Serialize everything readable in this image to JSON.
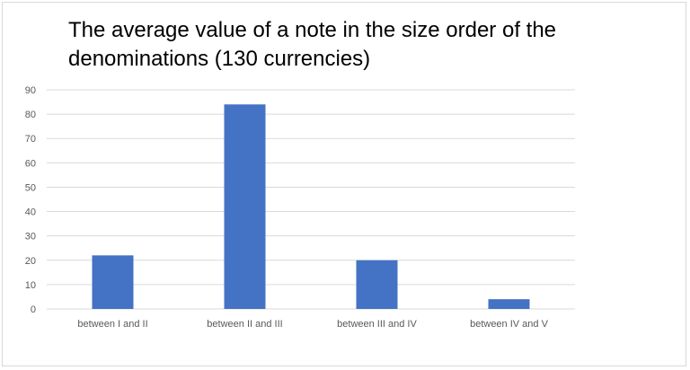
{
  "chart_data": {
    "type": "bar",
    "title": "The average value of a note in the size order of the denominations (130 currencies)",
    "xlabel": "",
    "ylabel": "",
    "categories": [
      "between I and II",
      "between II and III",
      "between III and IV",
      "between IV and V"
    ],
    "values": [
      22,
      84,
      20,
      4
    ],
    "ylim": [
      0,
      90
    ],
    "yticks": [
      0,
      10,
      20,
      30,
      40,
      50,
      60,
      70,
      80,
      90
    ],
    "grid": true,
    "legend": "none",
    "bar_color": "#4472c4",
    "grid_color": "#d9d9d9"
  }
}
